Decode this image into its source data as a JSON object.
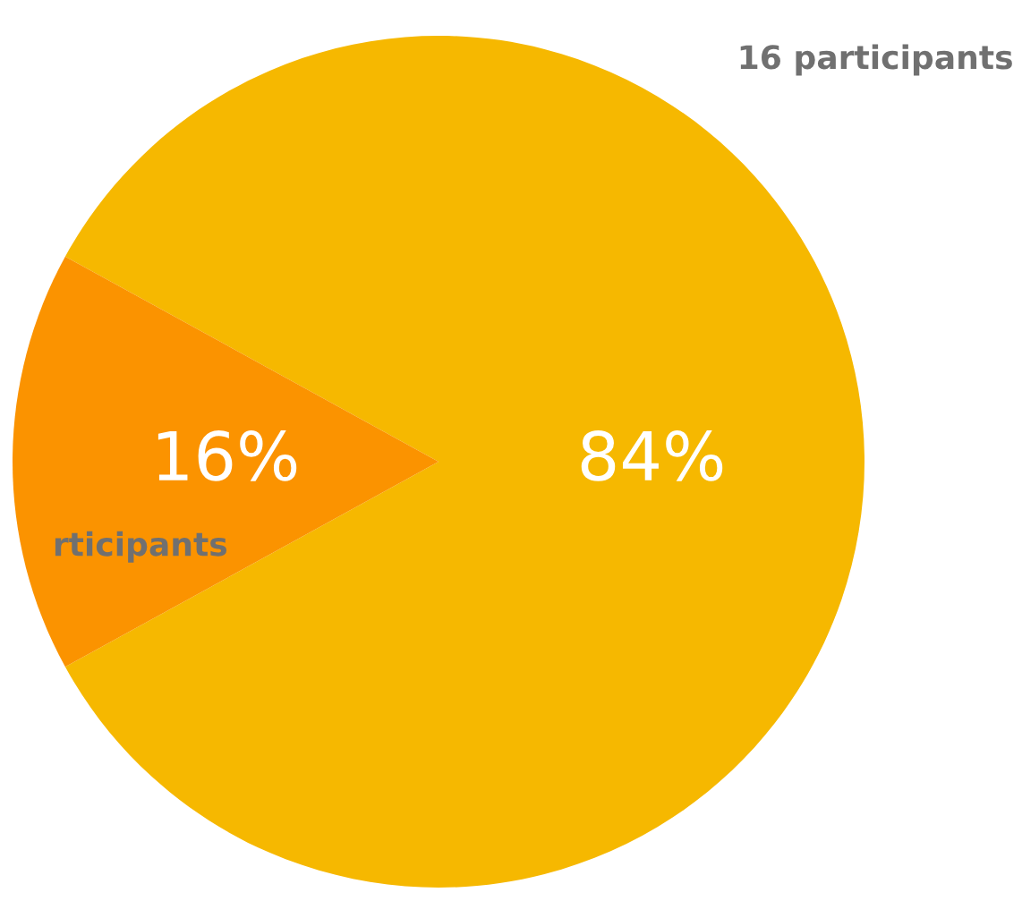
{
  "chart_data": {
    "type": "pie",
    "categories": [
      "16 participants",
      "rticipants"
    ],
    "values": [
      84,
      16
    ],
    "colors": [
      "#f6b800",
      "#fb9300"
    ],
    "value_labels": [
      "84%",
      "16%"
    ]
  }
}
